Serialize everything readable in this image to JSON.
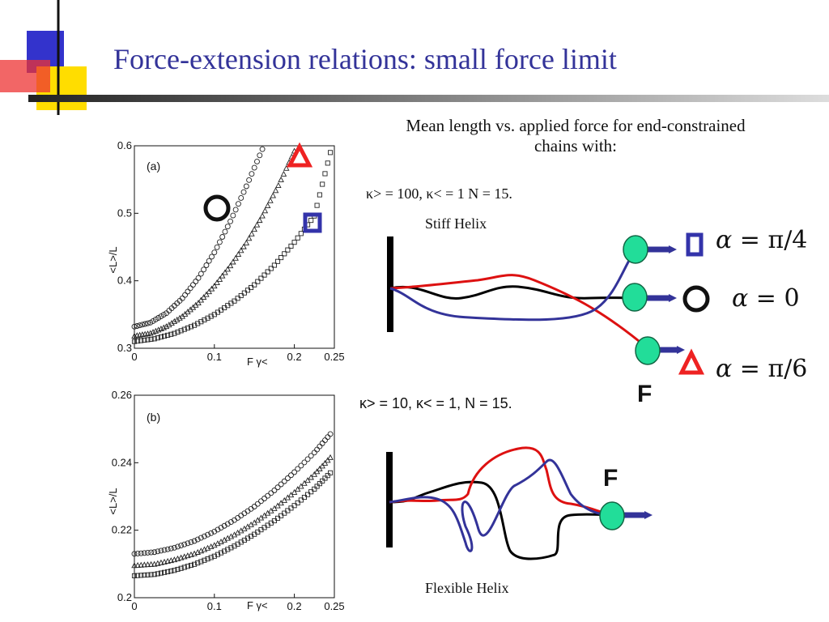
{
  "slide": {
    "title": "Force-extension relations: small force limit"
  },
  "colors": {
    "title": "#333399",
    "accent_blue": "#3333cc",
    "accent_red": "#ee2222",
    "accent_yellow": "#ffdd00",
    "bead_green": "#22dd99",
    "arrow_blue": "#333399"
  },
  "caption": {
    "line1": "Mean length vs. applied force for end-constrained",
    "line2": "chains with:"
  },
  "stiff": {
    "params": "κ> = 100, κ< = 1 N = 15.",
    "label": "Stiff Helix"
  },
  "flexible": {
    "params": "κ> = 10, κ< = 1, N = 15.",
    "label": "Flexible Helix"
  },
  "alpha_labels": {
    "pi4": "π/4",
    "zero": "0",
    "pi6": "π/6"
  },
  "force_label": "F",
  "chart_data": [
    {
      "type": "scatter",
      "panel_label": "(a)",
      "ylabel": "<L>/L",
      "xlabel": "F γ<",
      "xlim": [
        0,
        0.25
      ],
      "ylim": [
        0.3,
        0.6
      ],
      "xticks": [
        "0",
        "0.1",
        "0.2",
        "0.25"
      ],
      "yticks": [
        "0.3",
        "0.4",
        "0.5",
        "0.6"
      ],
      "series": [
        {
          "marker": "circle",
          "x": [
            0,
            0.02,
            0.04,
            0.06,
            0.08,
            0.1,
            0.12,
            0.14,
            0.16
          ],
          "y": [
            0.332,
            0.338,
            0.352,
            0.374,
            0.404,
            0.442,
            0.488,
            0.54,
            0.595
          ]
        },
        {
          "marker": "triangle",
          "x": [
            0,
            0.02,
            0.04,
            0.06,
            0.08,
            0.1,
            0.12,
            0.14,
            0.16,
            0.18,
            0.2
          ],
          "y": [
            0.318,
            0.322,
            0.332,
            0.347,
            0.367,
            0.392,
            0.422,
            0.456,
            0.496,
            0.541,
            0.592
          ]
        },
        {
          "marker": "square",
          "x": [
            0,
            0.025,
            0.05,
            0.075,
            0.1,
            0.125,
            0.15,
            0.175,
            0.2,
            0.225,
            0.245
          ],
          "y": [
            0.31,
            0.314,
            0.322,
            0.334,
            0.35,
            0.37,
            0.394,
            0.423,
            0.457,
            0.496,
            0.59
          ]
        }
      ]
    },
    {
      "type": "scatter",
      "panel_label": "(b)",
      "ylabel": "<L>/L",
      "xlabel": "F γ<",
      "xlim": [
        0,
        0.25
      ],
      "ylim": [
        0.2,
        0.26
      ],
      "xticks": [
        "0",
        "0.1",
        "0.2",
        "0.25"
      ],
      "yticks": [
        "0.2",
        "0.22",
        "0.24",
        "0.26"
      ],
      "series": [
        {
          "marker": "circle",
          "x": [
            0,
            0.025,
            0.05,
            0.075,
            0.1,
            0.125,
            0.15,
            0.175,
            0.2,
            0.225,
            0.245
          ],
          "y": [
            0.213,
            0.2135,
            0.2148,
            0.2168,
            0.2196,
            0.223,
            0.227,
            0.2318,
            0.2372,
            0.243,
            0.2485
          ]
        },
        {
          "marker": "triangle",
          "x": [
            0,
            0.025,
            0.05,
            0.075,
            0.1,
            0.125,
            0.15,
            0.175,
            0.2,
            0.225,
            0.245
          ],
          "y": [
            0.2095,
            0.2099,
            0.2112,
            0.213,
            0.2155,
            0.2186,
            0.2222,
            0.2264,
            0.2312,
            0.2365,
            0.2415
          ]
        },
        {
          "marker": "square",
          "x": [
            0,
            0.025,
            0.05,
            0.075,
            0.1,
            0.125,
            0.15,
            0.175,
            0.2,
            0.225,
            0.245
          ],
          "y": [
            0.2065,
            0.2069,
            0.2081,
            0.2099,
            0.2123,
            0.2153,
            0.2188,
            0.2228,
            0.2273,
            0.2322,
            0.237
          ]
        }
      ]
    }
  ]
}
